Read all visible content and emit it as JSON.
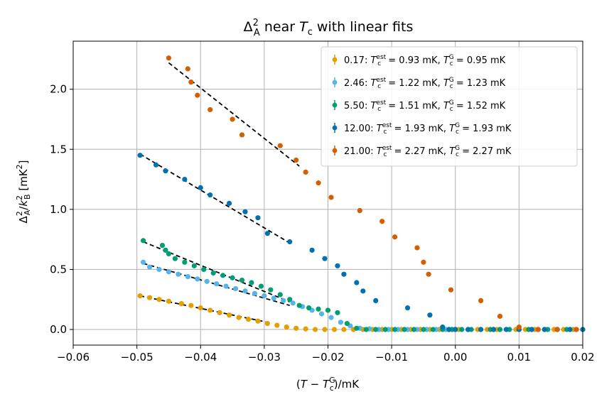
{
  "chart_data": {
    "type": "scatter",
    "title": "Δ_A^2 near T_c with linear fits",
    "xlabel": "(T − T_c^G)/mK",
    "ylabel": "Δ_A^2/k_B^2 [mK^2]",
    "xlim": [
      -0.06,
      0.02
    ],
    "ylim": [
      -0.13,
      2.4
    ],
    "xticks": [
      "−0.06",
      "−0.05",
      "−0.04",
      "−0.03",
      "−0.02",
      "−0.01",
      "0.00",
      "0.01",
      "0.02"
    ],
    "xtick_values": [
      -0.06,
      -0.05,
      -0.04,
      -0.03,
      -0.02,
      -0.01,
      0.0,
      0.01,
      0.02
    ],
    "yticks": [
      "0.0",
      "0.5",
      "1.0",
      "1.5",
      "2.0"
    ],
    "ytick_values": [
      0.0,
      0.5,
      1.0,
      1.5,
      2.0
    ],
    "grid": true,
    "legend_position": "top-right",
    "fit_line_style": "black dashed",
    "series": [
      {
        "name": "0.17: T_c^est = 0.93 mK, T_c^G = 0.95 mK",
        "legend_label": "0.17: Tcest = 0.93 mK, TcG = 0.95 mK",
        "color": "#E69F00",
        "x": [
          -0.0495,
          -0.048,
          -0.0465,
          -0.045,
          -0.043,
          -0.0415,
          -0.04,
          -0.0385,
          -0.037,
          -0.0355,
          -0.034,
          -0.0325,
          -0.031,
          -0.0295,
          -0.028,
          -0.0265,
          -0.025,
          -0.0235,
          -0.022,
          -0.0205,
          -0.019,
          -0.0175,
          -0.016,
          -0.0145,
          -0.013,
          -0.0115,
          -0.01,
          -0.0085,
          -0.007,
          -0.0055,
          -0.004,
          -0.0025,
          -0.001,
          0.0005,
          0.002,
          0.0035,
          0.005,
          0.0065,
          0.008,
          0.0095,
          0.011,
          0.0125,
          0.014,
          0.0155,
          0.017,
          0.0185,
          0.02
        ],
        "y": [
          0.28,
          0.265,
          0.25,
          0.235,
          0.215,
          0.2,
          0.18,
          0.16,
          0.14,
          0.12,
          0.1,
          0.085,
          0.07,
          0.05,
          0.035,
          0.02,
          0.01,
          0.005,
          0.0,
          0.0,
          0.0,
          0.0,
          0.0,
          0.0,
          0.0,
          0.0,
          0.0,
          0.0,
          0.0,
          0.0,
          0.0,
          0.0,
          0.0,
          0.0,
          0.0,
          0.0,
          0.0,
          0.0,
          0.0,
          0.0,
          0.0,
          0.0,
          0.0,
          0.0,
          0.0,
          0.0,
          0.0
        ],
        "fit": {
          "x": [
            -0.0495,
            -0.0295
          ],
          "y": [
            0.28,
            0.06
          ]
        }
      },
      {
        "name": "2.46: T_c^est = 1.22 mK, T_c^G = 1.23 mK",
        "legend_label": "2.46: Tcest = 1.22 mK, TcG = 1.23 mK",
        "color": "#56B4E9",
        "x": [
          -0.049,
          -0.048,
          -0.0465,
          -0.045,
          -0.0435,
          -0.042,
          -0.0405,
          -0.039,
          -0.0375,
          -0.036,
          -0.0345,
          -0.033,
          -0.0315,
          -0.03,
          -0.0285,
          -0.027,
          -0.0255,
          -0.024,
          -0.0225,
          -0.021,
          -0.0195,
          -0.018,
          -0.0165,
          -0.015,
          -0.0135,
          -0.012,
          -0.0105,
          -0.009,
          -0.0075,
          -0.006,
          -0.0045,
          -0.003,
          -0.0015,
          0.0,
          0.002,
          0.004,
          0.006,
          0.008,
          0.01,
          0.012,
          0.014,
          0.016,
          0.018,
          0.02
        ],
        "y": [
          0.56,
          0.52,
          0.5,
          0.48,
          0.46,
          0.44,
          0.42,
          0.4,
          0.38,
          0.36,
          0.34,
          0.32,
          0.3,
          0.28,
          0.26,
          0.24,
          0.22,
          0.19,
          0.16,
          0.13,
          0.1,
          0.06,
          0.03,
          0.01,
          0.005,
          0.0,
          0.0,
          0.0,
          0.0,
          0.0,
          0.0,
          0.0,
          0.0,
          0.0,
          0.0,
          0.0,
          0.0,
          0.0,
          0.0,
          0.0,
          0.0,
          0.0,
          0.0,
          0.0
        ],
        "fit": {
          "x": [
            -0.049,
            -0.026
          ],
          "y": [
            0.55,
            0.2
          ]
        }
      },
      {
        "name": "5.50: T_c^est = 1.51 mK, T_c^G = 1.52 mK",
        "legend_label": "5.50: Tcest = 1.51 mK, TcG = 1.52 mK",
        "color": "#009E73",
        "x": [
          -0.049,
          -0.046,
          -0.0455,
          -0.045,
          -0.044,
          -0.0425,
          -0.041,
          -0.0395,
          -0.038,
          -0.0365,
          -0.035,
          -0.0335,
          -0.032,
          -0.0305,
          -0.029,
          -0.0275,
          -0.026,
          -0.0245,
          -0.023,
          -0.0215,
          -0.02,
          -0.0185,
          -0.017,
          -0.0155,
          -0.014,
          -0.0125,
          -0.011,
          -0.0095,
          -0.008,
          -0.0065,
          -0.005,
          -0.0035,
          -0.002,
          -0.0005,
          0.001,
          0.0025,
          0.004,
          0.0055,
          0.007,
          0.0085,
          0.01,
          0.0115,
          0.013,
          0.0145,
          0.016,
          0.0175,
          0.019
        ],
        "y": [
          0.74,
          0.7,
          0.66,
          0.63,
          0.59,
          0.56,
          0.53,
          0.5,
          0.47,
          0.45,
          0.43,
          0.41,
          0.39,
          0.36,
          0.33,
          0.29,
          0.25,
          0.2,
          0.18,
          0.17,
          0.16,
          0.14,
          0.05,
          0.01,
          0.0,
          0.0,
          0.0,
          0.0,
          0.0,
          0.0,
          0.0,
          0.0,
          0.0,
          0.0,
          0.0,
          0.0,
          0.0,
          0.0,
          0.0,
          0.0,
          0.0,
          0.0,
          0.0,
          0.0,
          0.0,
          0.0,
          0.0
        ],
        "fit": {
          "x": [
            -0.049,
            -0.026
          ],
          "y": [
            0.73,
            0.23
          ]
        }
      },
      {
        "name": "12.00: T_c^est = 1.93 mK, T_c^G = 1.93 mK",
        "legend_label": "12.00: Tcest = 1.93 mK, TcG = 1.93 mK",
        "color": "#0072B2",
        "x": [
          -0.0495,
          -0.047,
          -0.0455,
          -0.0425,
          -0.04,
          -0.0385,
          -0.0355,
          -0.033,
          -0.031,
          -0.0295,
          -0.026,
          -0.0225,
          -0.0205,
          -0.0185,
          -0.0175,
          -0.0155,
          -0.0145,
          -0.0125,
          -0.0075,
          -0.004,
          -0.002,
          -0.001,
          0.0,
          0.002,
          0.004,
          0.006,
          0.008,
          0.01,
          0.012,
          0.014,
          0.016,
          0.018,
          0.02
        ],
        "y": [
          1.45,
          1.37,
          1.32,
          1.25,
          1.18,
          1.12,
          1.05,
          0.98,
          0.93,
          0.8,
          0.73,
          0.66,
          0.59,
          0.53,
          0.46,
          0.39,
          0.32,
          0.24,
          0.18,
          0.12,
          0.02,
          0.0,
          0.0,
          0.0,
          0.0,
          0.0,
          0.0,
          0.0,
          0.0,
          0.0,
          0.0,
          0.0,
          0.0
        ],
        "fit": {
          "x": [
            -0.0495,
            -0.026
          ],
          "y": [
            1.46,
            0.72
          ]
        }
      },
      {
        "name": "21.00: T_c^est = 2.27 mK, T_c^G = 2.27 mK",
        "legend_label": "21.00: Tcest = 2.27 mK, TcG = 2.27 mK",
        "color": "#D55E00",
        "x": [
          -0.045,
          -0.042,
          -0.0415,
          -0.0405,
          -0.0385,
          -0.035,
          -0.0335,
          -0.0275,
          -0.025,
          -0.0235,
          -0.0215,
          -0.0195,
          -0.015,
          -0.0115,
          -0.0095,
          -0.006,
          -0.005,
          -0.0042,
          -0.0007,
          0.004,
          0.007,
          0.01,
          0.013,
          0.016,
          0.019
        ],
        "y": [
          2.26,
          2.17,
          2.06,
          1.95,
          1.83,
          1.75,
          1.62,
          1.53,
          1.41,
          1.31,
          1.22,
          1.1,
          0.99,
          0.9,
          0.77,
          0.68,
          0.56,
          0.46,
          0.33,
          0.24,
          0.11,
          0.02,
          0.0,
          0.0,
          0.0
        ],
        "fit": {
          "x": [
            -0.045,
            -0.0245
          ],
          "y": [
            2.22,
            1.36
          ]
        }
      }
    ]
  }
}
